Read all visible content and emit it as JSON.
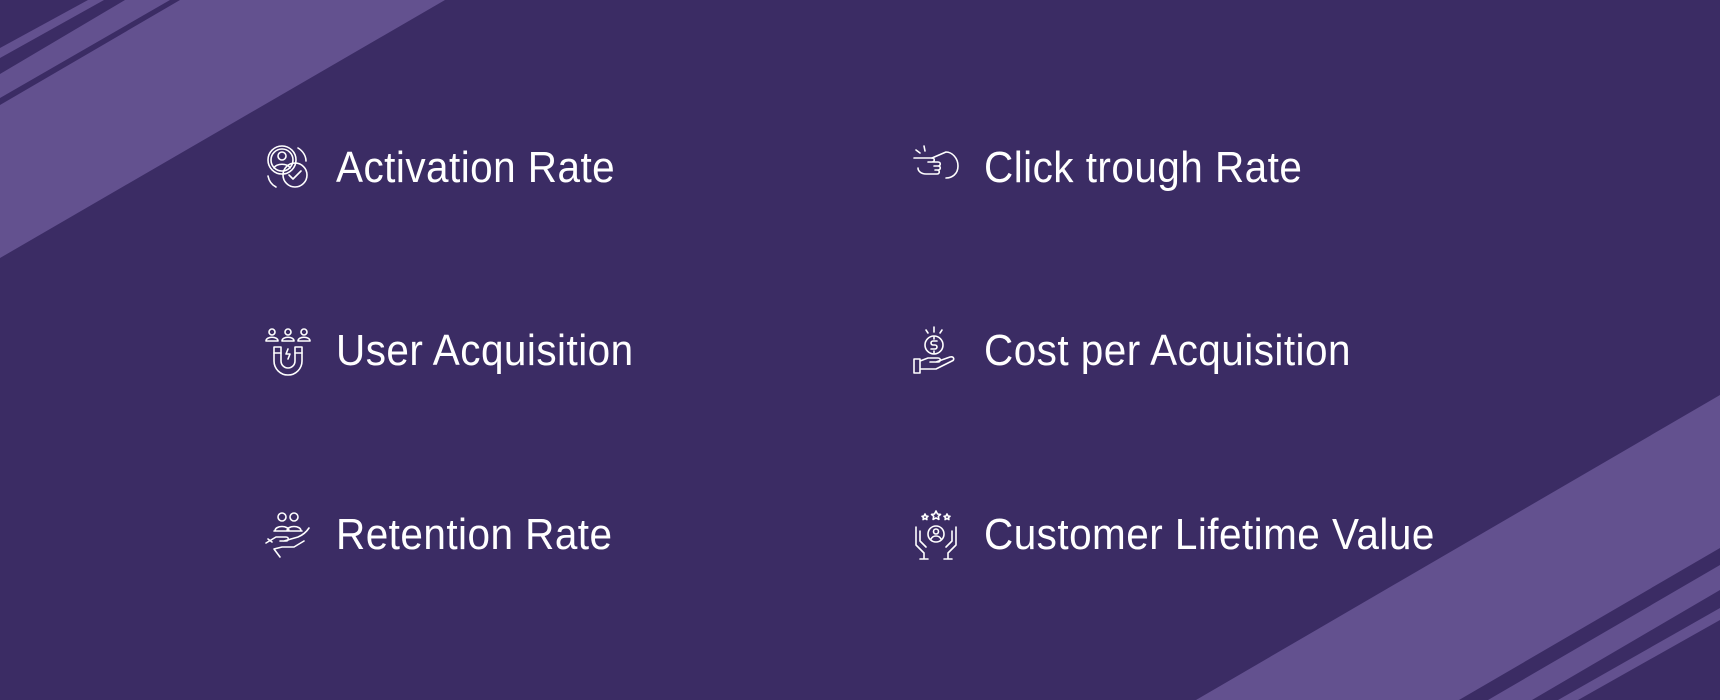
{
  "colors": {
    "background": "#3b2c64",
    "stripe": "#63518f",
    "text": "#ffffff"
  },
  "metrics": [
    {
      "label": "Activation Rate",
      "icon": "user-check-icon"
    },
    {
      "label": "Click trough Rate",
      "icon": "pointer-click-icon"
    },
    {
      "label": "User Acquisition",
      "icon": "magnet-users-icon"
    },
    {
      "label": "Cost per Acquisition",
      "icon": "hand-coin-icon"
    },
    {
      "label": "Retention Rate",
      "icon": "hand-users-icon"
    },
    {
      "label": "Customer Lifetime Value",
      "icon": "hands-customer-stars-icon"
    }
  ]
}
